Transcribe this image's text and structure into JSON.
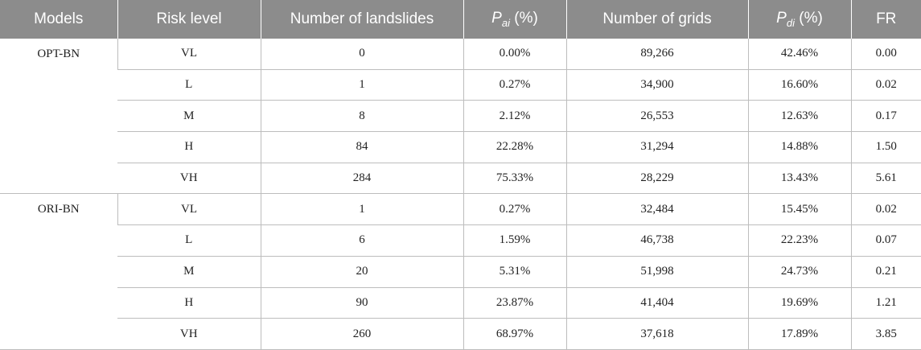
{
  "table": {
    "headers": {
      "models": "Models",
      "risk_level": "Risk level",
      "landslides": "Number of landslides",
      "pai_main": "P",
      "pai_sub": "ai",
      "pai_unit": " (%)",
      "grids": "Number of grids",
      "pdi_main": "P",
      "pdi_sub": "di",
      "pdi_unit": " (%)",
      "fr": "FR"
    },
    "groups": [
      {
        "model": "OPT-BN",
        "rows": [
          {
            "risk": "VL",
            "landslides": "0",
            "pai": "0.00%",
            "grids": "89,266",
            "pdi": "42.46%",
            "fr": "0.00"
          },
          {
            "risk": "L",
            "landslides": "1",
            "pai": "0.27%",
            "grids": "34,900",
            "pdi": "16.60%",
            "fr": "0.02"
          },
          {
            "risk": "M",
            "landslides": "8",
            "pai": "2.12%",
            "grids": "26,553",
            "pdi": "12.63%",
            "fr": "0.17"
          },
          {
            "risk": "H",
            "landslides": "84",
            "pai": "22.28%",
            "grids": "31,294",
            "pdi": "14.88%",
            "fr": "1.50"
          },
          {
            "risk": "VH",
            "landslides": "284",
            "pai": "75.33%",
            "grids": "28,229",
            "pdi": "13.43%",
            "fr": "5.61"
          }
        ]
      },
      {
        "model": "ORI-BN",
        "rows": [
          {
            "risk": "VL",
            "landslides": "1",
            "pai": "0.27%",
            "grids": "32,484",
            "pdi": "15.45%",
            "fr": "0.02"
          },
          {
            "risk": "L",
            "landslides": "6",
            "pai": "1.59%",
            "grids": "46,738",
            "pdi": "22.23%",
            "fr": "0.07"
          },
          {
            "risk": "M",
            "landslides": "20",
            "pai": "5.31%",
            "grids": "51,998",
            "pdi": "24.73%",
            "fr": "0.21"
          },
          {
            "risk": "H",
            "landslides": "90",
            "pai": "23.87%",
            "grids": "41,404",
            "pdi": "19.69%",
            "fr": "1.21"
          },
          {
            "risk": "VH",
            "landslides": "260",
            "pai": "68.97%",
            "grids": "37,618",
            "pdi": "17.89%",
            "fr": "3.85"
          }
        ]
      }
    ]
  }
}
